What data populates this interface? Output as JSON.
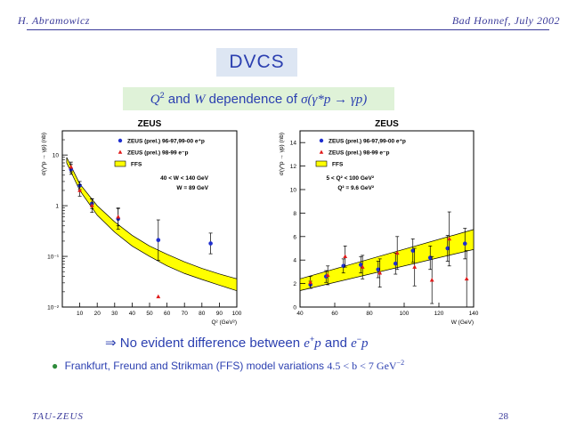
{
  "header": {
    "author": "H. Abramowicz",
    "venue": "Bad Honnef, July 2002"
  },
  "title": "DVCS",
  "subtitle": {
    "pre": "and",
    "mid": "dependence of",
    "q": "Q",
    "w": "W",
    "sigma": "σ(γ*p → γp)"
  },
  "conclusion": {
    "arrow": "⇒",
    "text": "No evident difference between",
    "and": "and",
    "ep": "e",
    "em": "e"
  },
  "bullet": {
    "text": "Frankfurt, Freund and Strikman (FFS) model variations",
    "math": "4.5 < b < 7 GeV"
  },
  "footer": {
    "left": "TAU-ZEUS",
    "page": "28"
  },
  "chart_data": [
    {
      "type": "scatter",
      "title": "ZEUS",
      "xlabel": "Q² (GeV²)",
      "ylabel": "σ(γ*p → γp) (nb)",
      "xlim": [
        0,
        100
      ],
      "ylim": [
        0.01,
        30
      ],
      "yscale": "log",
      "xticks": [
        "10",
        "20",
        "30",
        "40",
        "50",
        "60",
        "70",
        "80",
        "90",
        "100"
      ],
      "yticks": [
        "10",
        "1",
        "10⁻¹",
        "10⁻²"
      ],
      "legend": [
        "ZEUS (prel.) 96-97,99-00 e⁺p",
        "ZEUS (prel.) 98-99 e⁻p",
        "FFS"
      ],
      "annotations": [
        "40 < W < 140 GeV",
        "W = 89 GeV"
      ],
      "series": [
        {
          "name": "ZEUS (prel.) 96-97,99-00 e⁺p",
          "color": "#1f2fd0",
          "marker": "circle",
          "x": [
            5,
            10,
            17,
            32,
            55,
            85
          ],
          "y": [
            5.2,
            2.5,
            1.1,
            0.55,
            0.21,
            0.18
          ]
        },
        {
          "name": "ZEUS (prel.) 98-99 e⁻p",
          "color": "#e01a1a",
          "marker": "triangle",
          "x": [
            5,
            10,
            17,
            32,
            55
          ],
          "y": [
            5.8,
            2.0,
            1.0,
            0.6,
            0.016
          ]
        },
        {
          "name": "FFS",
          "color": "#ffff00",
          "band": true,
          "x": [
            2.5,
            10,
            20,
            30,
            40,
            50,
            60,
            70,
            80,
            90,
            100
          ],
          "ylow": [
            7,
            2.0,
            0.65,
            0.3,
            0.16,
            0.1,
            0.065,
            0.046,
            0.035,
            0.027,
            0.021
          ],
          "yhigh": [
            9,
            2.7,
            1.0,
            0.48,
            0.26,
            0.16,
            0.11,
            0.078,
            0.058,
            0.045,
            0.036
          ]
        }
      ]
    },
    {
      "type": "scatter",
      "title": "ZEUS",
      "xlabel": "W (GeV)",
      "ylabel": "σ(γ*p → γp) (nb)",
      "xlim": [
        40,
        140
      ],
      "ylim": [
        0,
        15
      ],
      "xticks": [
        "40",
        "60",
        "80",
        "100",
        "120",
        "140"
      ],
      "yticks": [
        "0",
        "2",
        "4",
        "6",
        "8",
        "10",
        "12",
        "14"
      ],
      "legend": [
        "ZEUS (prel.) 96-97,99-00 e⁺p",
        "ZEUS (prel.) 98-99 e⁻p",
        "FFS"
      ],
      "annotations": [
        "5 < Q² < 100 GeV²",
        "Q² = 9.6 GeV²"
      ],
      "series": [
        {
          "name": "ZEUS (prel.) 96-97,99-00 e⁺p",
          "color": "#1f2fd0",
          "marker": "circle",
          "x": [
            46,
            55,
            65,
            75,
            85,
            95,
            105,
            115,
            125,
            135
          ],
          "y": [
            1.9,
            2.6,
            3.5,
            3.6,
            3.2,
            3.7,
            4.8,
            4.2,
            5.0,
            5.4
          ]
        },
        {
          "name": "ZEUS (prel.) 98-99 e⁻p",
          "color": "#e01a1a",
          "marker": "triangle",
          "x": [
            46,
            56,
            66,
            76,
            86,
            96,
            106,
            116,
            126,
            136
          ],
          "y": [
            2.1,
            2.7,
            4.3,
            3.4,
            2.9,
            4.6,
            3.4,
            2.3,
            5.8,
            2.4
          ]
        },
        {
          "name": "FFS",
          "color": "#ffff00",
          "band": true,
          "x": [
            40,
            140
          ],
          "ylow": [
            1.4,
            4.9
          ],
          "yhigh": [
            2.4,
            6.6
          ]
        }
      ]
    }
  ]
}
